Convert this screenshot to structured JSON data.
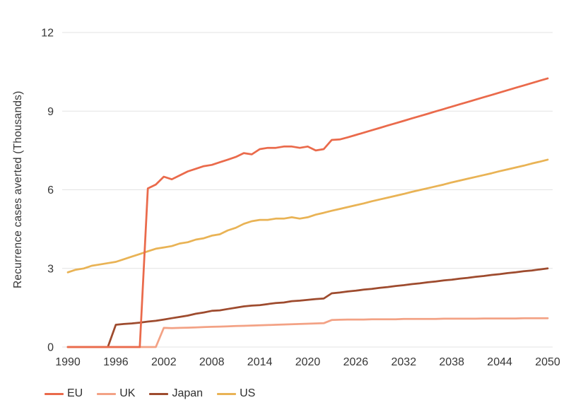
{
  "chart_data": {
    "type": "line",
    "title": "",
    "xlabel": "",
    "ylabel": "Recurrence cases averted (Thousands)",
    "xlim": [
      1990,
      2050
    ],
    "ylim": [
      0,
      12
    ],
    "xticks": [
      1990,
      1996,
      2002,
      2008,
      2014,
      2020,
      2026,
      2032,
      2038,
      2044,
      2050
    ],
    "yticks": [
      0,
      3,
      6,
      9,
      12
    ],
    "grid": "horizontal-only",
    "legend_position": "bottom-left",
    "style": {
      "grid_color": "#e3e3e3",
      "text_color": "#363636",
      "background": "#ffffff",
      "line_width": 2.75
    },
    "years": [
      1990,
      1991,
      1992,
      1993,
      1994,
      1995,
      1996,
      1997,
      1998,
      1999,
      2000,
      2001,
      2002,
      2003,
      2004,
      2005,
      2006,
      2007,
      2008,
      2009,
      2010,
      2011,
      2012,
      2013,
      2014,
      2015,
      2016,
      2017,
      2018,
      2019,
      2020,
      2021,
      2022,
      2023,
      2024,
      2025,
      2026,
      2027,
      2028,
      2029,
      2030,
      2031,
      2032,
      2033,
      2034,
      2035,
      2036,
      2037,
      2038,
      2039,
      2040,
      2041,
      2042,
      2043,
      2044,
      2045,
      2046,
      2047,
      2048,
      2049,
      2050
    ],
    "series": [
      {
        "name": "EU",
        "color": "#ea6a4b",
        "values": [
          0,
          0,
          0,
          0,
          0,
          0,
          0,
          0,
          0,
          0,
          6.05,
          6.2,
          6.5,
          6.4,
          6.55,
          6.7,
          6.8,
          6.9,
          6.95,
          7.05,
          7.15,
          7.25,
          7.4,
          7.35,
          7.55,
          7.6,
          7.6,
          7.65,
          7.65,
          7.6,
          7.65,
          7.5,
          7.55,
          7.9,
          7.92,
          8.0,
          8.09,
          8.18,
          8.27,
          8.36,
          8.45,
          8.54,
          8.63,
          8.72,
          8.81,
          8.9,
          8.99,
          9.08,
          9.17,
          9.26,
          9.35,
          9.44,
          9.53,
          9.62,
          9.71,
          9.8,
          9.89,
          9.98,
          10.07,
          10.16,
          10.25
        ]
      },
      {
        "name": "UK",
        "color": "#f3a285",
        "values": [
          0,
          0,
          0,
          0,
          0,
          0,
          0,
          0,
          0,
          0,
          0,
          0,
          0.73,
          0.72,
          0.73,
          0.74,
          0.75,
          0.76,
          0.77,
          0.78,
          0.79,
          0.8,
          0.81,
          0.82,
          0.83,
          0.84,
          0.85,
          0.86,
          0.87,
          0.88,
          0.89,
          0.9,
          0.91,
          1.03,
          1.04,
          1.05,
          1.05,
          1.05,
          1.06,
          1.06,
          1.06,
          1.06,
          1.07,
          1.07,
          1.07,
          1.07,
          1.07,
          1.08,
          1.08,
          1.08,
          1.08,
          1.08,
          1.09,
          1.09,
          1.09,
          1.09,
          1.09,
          1.1,
          1.1,
          1.1,
          1.1
        ]
      },
      {
        "name": "Japan",
        "color": "#9e4b2e",
        "values": [
          0,
          0,
          0,
          0,
          0,
          0,
          0.85,
          0.88,
          0.9,
          0.93,
          0.97,
          1.0,
          1.05,
          1.1,
          1.15,
          1.2,
          1.27,
          1.32,
          1.38,
          1.4,
          1.45,
          1.5,
          1.55,
          1.58,
          1.6,
          1.64,
          1.68,
          1.7,
          1.75,
          1.77,
          1.8,
          1.83,
          1.85,
          2.05,
          2.08,
          2.12,
          2.15,
          2.19,
          2.22,
          2.26,
          2.29,
          2.33,
          2.36,
          2.4,
          2.43,
          2.47,
          2.5,
          2.54,
          2.57,
          2.61,
          2.64,
          2.68,
          2.71,
          2.75,
          2.78,
          2.82,
          2.85,
          2.89,
          2.92,
          2.96,
          3.0
        ]
      },
      {
        "name": "US",
        "color": "#e9b355",
        "values": [
          2.85,
          2.95,
          3.0,
          3.1,
          3.15,
          3.2,
          3.25,
          3.35,
          3.45,
          3.55,
          3.65,
          3.75,
          3.8,
          3.85,
          3.95,
          4.0,
          4.1,
          4.15,
          4.25,
          4.3,
          4.45,
          4.55,
          4.7,
          4.8,
          4.85,
          4.85,
          4.9,
          4.9,
          4.95,
          4.9,
          4.95,
          5.05,
          5.12,
          5.2,
          5.27,
          5.34,
          5.41,
          5.48,
          5.56,
          5.63,
          5.7,
          5.77,
          5.84,
          5.92,
          5.99,
          6.06,
          6.13,
          6.2,
          6.28,
          6.35,
          6.42,
          6.49,
          6.56,
          6.63,
          6.71,
          6.78,
          6.85,
          6.92,
          7.0,
          7.07,
          7.15
        ]
      }
    ]
  }
}
